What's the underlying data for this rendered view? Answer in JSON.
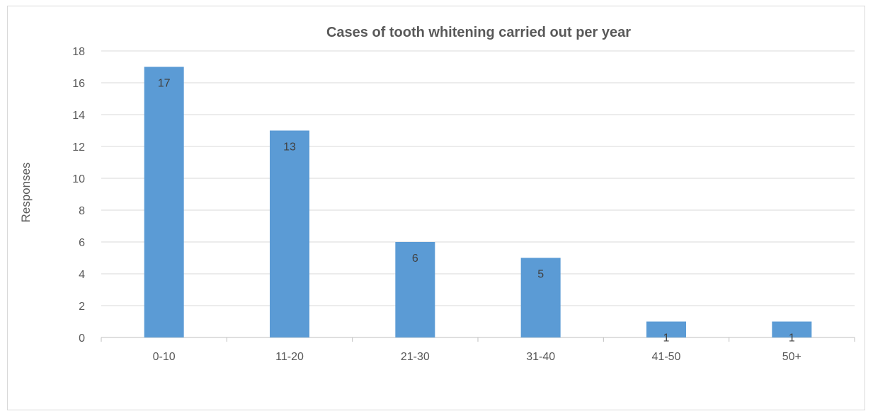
{
  "chart_data": {
    "type": "bar",
    "title": "Cases of tooth whitening carried out per year",
    "xlabel": "",
    "ylabel": "Responses",
    "categories": [
      "0-10",
      "11-20",
      "21-30",
      "31-40",
      "41-50",
      "50+"
    ],
    "values": [
      17,
      13,
      6,
      5,
      1,
      1
    ],
    "data_labels": [
      "17",
      "13",
      "6",
      "5",
      "1",
      "1"
    ],
    "ylim": [
      0,
      18
    ],
    "yticks": [
      0,
      2,
      4,
      6,
      8,
      10,
      12,
      14,
      16,
      18
    ],
    "grid": true,
    "legend": "none",
    "colors": {
      "bar": "#5b9bd5",
      "grid": "#d9d9d9",
      "axis": "#bfbfbf",
      "text": "#595959"
    }
  }
}
